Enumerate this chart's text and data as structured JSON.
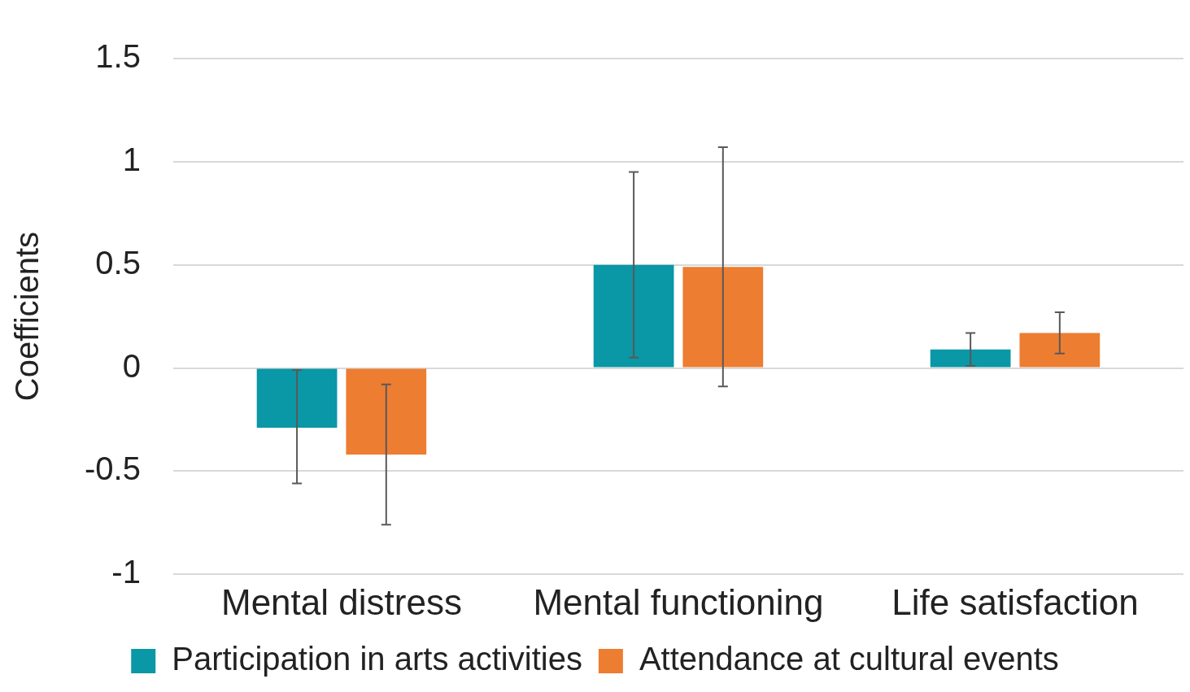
{
  "chart_data": {
    "type": "bar",
    "ylabel": "Coefficients",
    "categories": [
      "Mental distress",
      "Mental functioning",
      "Life satisfaction"
    ],
    "series": [
      {
        "name": "Participation in arts activities",
        "color": "#0a97a6",
        "values": [
          -0.29,
          0.5,
          0.09
        ],
        "errors": [
          [
            -0.56,
            -0.01
          ],
          [
            0.05,
            0.95
          ],
          [
            0.01,
            0.17
          ]
        ]
      },
      {
        "name": "Attendance at cultural events",
        "color": "#ed7d31",
        "values": [
          -0.42,
          0.49,
          0.17
        ],
        "errors": [
          [
            -0.76,
            -0.08
          ],
          [
            -0.09,
            1.07
          ],
          [
            0.07,
            0.27
          ]
        ]
      }
    ],
    "ylim": [
      -1,
      1.5
    ],
    "yticks": [
      -1,
      -0.5,
      0,
      0.5,
      1,
      1.5
    ],
    "grid": "y",
    "legend": "bottom"
  }
}
